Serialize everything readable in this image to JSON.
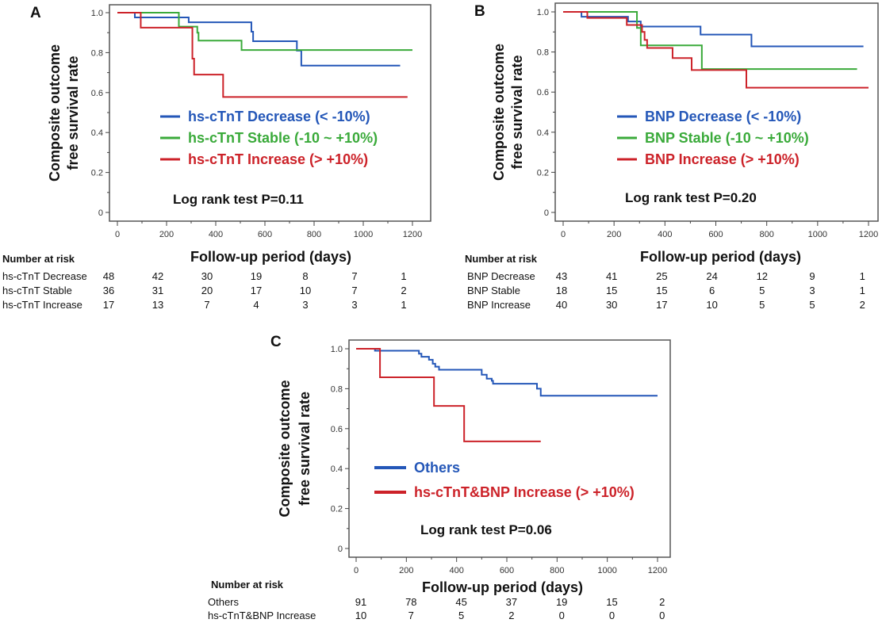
{
  "figure": {
    "panels": [
      "A",
      "B",
      "C"
    ]
  },
  "chart_data": [
    {
      "type": "line",
      "subtype": "kaplan-meier step",
      "panel": "A",
      "xlabel": "Follow-up period (days)",
      "ylabel_lines": [
        "Composite outcome",
        "free survival rate"
      ],
      "xlim": [
        0,
        1200
      ],
      "ylim": [
        0,
        1.0
      ],
      "xticks": [
        0,
        200,
        400,
        600,
        800,
        1000,
        1200
      ],
      "yticks": [
        0,
        0.2,
        0.4,
        0.6,
        0.8,
        1.0
      ],
      "ytick_labels": [
        "0",
        "0.2",
        "0.4",
        "0.6",
        "0.8",
        "1.0"
      ],
      "grid": false,
      "legend_placement": "center",
      "annotation": "Log rank test P=0.11",
      "series": [
        {
          "name": "hs-cTnT Decrease (< -10%)",
          "color": "#2457b8",
          "x": [
            0,
            71,
            290,
            545,
            552,
            730,
            748,
            1150
          ],
          "y": [
            1.0,
            0.976,
            0.952,
            0.905,
            0.857,
            0.81,
            0.735,
            0.735
          ]
        },
        {
          "name": "hs-cTnT Stable (-10 ~ +10%)",
          "color": "#3aaa3a",
          "x": [
            0,
            250,
            325,
            330,
            505,
            1200
          ],
          "y": [
            1.0,
            0.93,
            0.9,
            0.86,
            0.813,
            0.813
          ]
        },
        {
          "name": "hs-cTnT Increase (> +10%)",
          "color": "#cc2229",
          "x": [
            0,
            95,
            305,
            312,
            430,
            1180
          ],
          "y": [
            1.0,
            0.925,
            0.77,
            0.69,
            0.578,
            0.578
          ]
        }
      ],
      "risk_table": {
        "title": "Number at risk",
        "timepoints": [
          0,
          200,
          400,
          600,
          800,
          1000,
          1200
        ],
        "rows": [
          {
            "label": "hs-cTnT Decrease",
            "values": [
              48,
              42,
              30,
              19,
              8,
              7,
              1
            ]
          },
          {
            "label": "hs-cTnT Stable",
            "values": [
              36,
              31,
              20,
              17,
              10,
              7,
              2
            ]
          },
          {
            "label": "hs-cTnT Increase",
            "values": [
              17,
              13,
              7,
              4,
              3,
              3,
              1
            ]
          }
        ]
      }
    },
    {
      "type": "line",
      "subtype": "kaplan-meier step",
      "panel": "B",
      "xlabel": "Follow-up period (days)",
      "ylabel_lines": [
        "Composite outcome",
        "free survival rate"
      ],
      "xlim": [
        0,
        1200
      ],
      "ylim": [
        0,
        1.0
      ],
      "xticks": [
        0,
        200,
        400,
        600,
        800,
        1000,
        1200
      ],
      "yticks": [
        0,
        0.2,
        0.4,
        0.6,
        0.8,
        1.0
      ],
      "ytick_labels": [
        "0",
        "0.2",
        "0.4",
        "0.6",
        "0.8",
        "1.0"
      ],
      "grid": false,
      "legend_placement": "center",
      "annotation": "Log rank test P=0.20",
      "series": [
        {
          "name": "BNP Decrease (< -10%)",
          "color": "#2457b8",
          "x": [
            0,
            72,
            255,
            305,
            540,
            740,
            1180
          ],
          "y": [
            1.0,
            0.976,
            0.952,
            0.927,
            0.887,
            0.828,
            0.828
          ]
        },
        {
          "name": "BNP Stable (-10 ~ +10%)",
          "color": "#3aaa3a",
          "x": [
            0,
            290,
            305,
            545,
            1155
          ],
          "y": [
            1.0,
            0.92,
            0.833,
            0.715,
            0.715
          ]
        },
        {
          "name": "BNP Increase (> +10%)",
          "color": "#cc2229",
          "x": [
            0,
            95,
            250,
            310,
            320,
            330,
            430,
            505,
            720,
            1200
          ],
          "y": [
            1.0,
            0.97,
            0.935,
            0.9,
            0.86,
            0.82,
            0.77,
            0.71,
            0.622,
            0.622
          ]
        }
      ],
      "risk_table": {
        "title": "Number at risk",
        "timepoints": [
          0,
          200,
          400,
          600,
          800,
          1000,
          1200
        ],
        "rows": [
          {
            "label": "BNP Decrease",
            "values": [
              43,
              41,
              25,
              24,
              12,
              9,
              1
            ]
          },
          {
            "label": "BNP Stable",
            "values": [
              18,
              15,
              15,
              6,
              5,
              3,
              1
            ]
          },
          {
            "label": "BNP Increase",
            "values": [
              40,
              30,
              17,
              10,
              5,
              5,
              2
            ]
          }
        ]
      }
    },
    {
      "type": "line",
      "subtype": "kaplan-meier step",
      "panel": "C",
      "xlabel": "Follow-up period (days)",
      "ylabel_lines": [
        "Composite outcome",
        "free survival rate"
      ],
      "xlim": [
        0,
        1200
      ],
      "ylim": [
        0,
        1.0
      ],
      "xticks": [
        0,
        200,
        400,
        600,
        800,
        1000,
        1200
      ],
      "yticks": [
        0,
        0.2,
        0.4,
        0.6,
        0.8,
        1.0
      ],
      "ytick_labels": [
        "0",
        "0.2",
        "0.4",
        "0.6",
        "0.8",
        "1.0"
      ],
      "grid": false,
      "legend_placement": "center-left",
      "annotation": "Log rank test P=0.06",
      "series": [
        {
          "name": "Others",
          "color": "#2457b8",
          "x": [
            0,
            75,
            250,
            260,
            290,
            305,
            315,
            330,
            500,
            520,
            540,
            545,
            720,
            735,
            1200
          ],
          "y": [
            1.0,
            0.99,
            0.975,
            0.96,
            0.945,
            0.925,
            0.91,
            0.895,
            0.87,
            0.85,
            0.84,
            0.825,
            0.8,
            0.765,
            0.765
          ]
        },
        {
          "name": "hs-cTnT&BNP Increase (> +10%)",
          "color": "#cc2229",
          "x": [
            0,
            95,
            310,
            430,
            735
          ],
          "y": [
            1.0,
            0.857,
            0.714,
            0.536,
            0.536
          ]
        }
      ],
      "risk_table": {
        "title": "Number at risk",
        "timepoints": [
          0,
          200,
          400,
          600,
          800,
          1000,
          1200
        ],
        "rows": [
          {
            "label": "Others",
            "values": [
              91,
              78,
              45,
              37,
              19,
              15,
              2
            ]
          },
          {
            "label": "hs-cTnT&BNP Increase",
            "values": [
              10,
              7,
              5,
              2,
              0,
              0,
              0
            ]
          }
        ]
      }
    }
  ]
}
